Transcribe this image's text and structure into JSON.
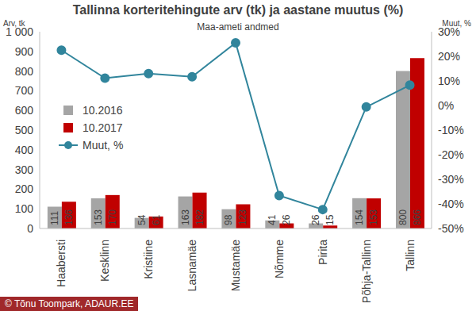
{
  "chart_data": {
    "type": "bar",
    "title": "Tallinna korteritehingute arv (tk) ja aastane muutus (%)",
    "subtitle": "Maa-ameti andmed",
    "y_label": "Arv, tk",
    "y2_label": "Muut, %",
    "source": "© Tõnu Toompark, ADAUR.EE",
    "categories": [
      "Haabersti",
      "Kesklinn",
      "Kristiine",
      "Lasnamäe",
      "Mustamäe",
      "Nõmme",
      "Pirita",
      "Põhja-Tallinn",
      "Tallinn"
    ],
    "series": [
      {
        "name": "10.2016",
        "type": "bar",
        "color": "#a5a5a5",
        "values": [
          111,
          153,
          54,
          163,
          98,
          41,
          26,
          154,
          800
        ]
      },
      {
        "name": "10.2017",
        "type": "bar",
        "color": "#c00000",
        "values": [
          136,
          170,
          61,
          182,
          123,
          26,
          15,
          153,
          866
        ]
      },
      {
        "name": "Muut, %",
        "type": "line",
        "axis": "y2",
        "color": "#31859c",
        "marker": "circle",
        "values": [
          22.5,
          11.1,
          13.0,
          11.7,
          25.5,
          -36.6,
          -42.3,
          -0.6,
          8.3
        ]
      }
    ],
    "ylim": [
      0,
      1000
    ],
    "yticks": [
      0,
      100,
      200,
      300,
      400,
      500,
      600,
      700,
      800,
      900,
      {
        "value": 1000,
        "label": "1 000"
      }
    ],
    "y2lim": [
      -50,
      30
    ],
    "y2ticks": [
      {
        "value": -50,
        "label": "-50%"
      },
      {
        "value": -40,
        "label": "-40%"
      },
      {
        "value": -30,
        "label": "-30%"
      },
      {
        "value": -20,
        "label": "-20%"
      },
      {
        "value": -10,
        "label": "-10%"
      },
      {
        "value": 0,
        "label": "0%"
      },
      {
        "value": 10,
        "label": "10%"
      },
      {
        "value": 20,
        "label": "20%"
      },
      {
        "value": 30,
        "label": "30%"
      }
    ],
    "grid": false,
    "legend": "left",
    "data_labels": true
  }
}
